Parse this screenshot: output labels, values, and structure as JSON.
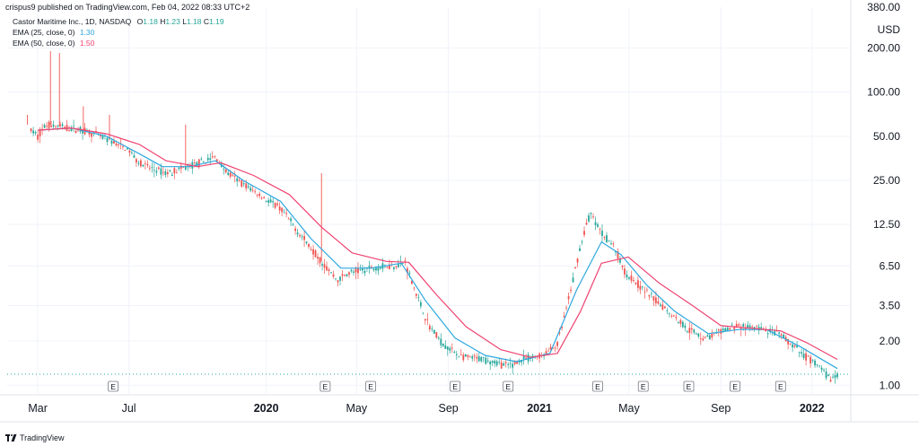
{
  "header": {
    "published": "crispus9 published on TradingView.com, Feb 04, 2022 08:33 UTC+2"
  },
  "legend": {
    "symbol": "Castor Maritime Inc., 1D, NASDAQ",
    "ohlc": {
      "o_label": "O",
      "o": "1.18",
      "h_label": "H",
      "h": "1.23",
      "l_label": "L",
      "l": "1.18",
      "c_label": "C",
      "c": "1.19"
    },
    "ema25_label": "EMA (25, close, 0)",
    "ema25_value": "1.30",
    "ema50_label": "EMA (50, close, 0)",
    "ema50_value": "1.50"
  },
  "footer": {
    "brand": "TradingView"
  },
  "colors": {
    "up": "#26a69a",
    "down": "#ef5350",
    "ema25": "#2ea8e0",
    "ema50": "#ef4270",
    "grid": "#f0f3fa",
    "axis_text": "#131722",
    "last_price": "#26a69a"
  },
  "chart_data": {
    "type": "line",
    "y_scale": "log",
    "y_unit": "USD",
    "y_ticks": [
      1.0,
      2.0,
      3.5,
      6.5,
      12.5,
      25.0,
      50.0,
      100.0,
      200.0,
      380.0
    ],
    "y_tick_labels": [
      "1.00",
      "2.00",
      "3.50",
      "6.50",
      "12.50",
      "25.00",
      "50.00",
      "100.00",
      "200.00",
      "380.00"
    ],
    "x_tick_labels": [
      {
        "label": "Mar",
        "date": "2019-03-01",
        "bold": false
      },
      {
        "label": "Jul",
        "date": "2019-07-01",
        "bold": false
      },
      {
        "label": "2020",
        "date": "2020-01-01",
        "bold": true
      },
      {
        "label": "May",
        "date": "2020-05-01",
        "bold": false
      },
      {
        "label": "Sep",
        "date": "2020-09-01",
        "bold": false
      },
      {
        "label": "2021",
        "date": "2021-01-01",
        "bold": true
      },
      {
        "label": "May",
        "date": "2021-05-01",
        "bold": false
      },
      {
        "label": "Sep",
        "date": "2021-09-01",
        "bold": false
      },
      {
        "label": "2022",
        "date": "2022-01-01",
        "bold": true
      }
    ],
    "earnings_markers": [
      {
        "label": "E",
        "date": "2019-06-10"
      },
      {
        "label": "E",
        "date": "2020-03-20"
      },
      {
        "label": "E",
        "date": "2020-05-20"
      },
      {
        "label": "E",
        "date": "2020-09-10"
      },
      {
        "label": "E",
        "date": "2020-11-20"
      },
      {
        "label": "E",
        "date": "2021-03-20"
      },
      {
        "label": "E",
        "date": "2021-05-20"
      },
      {
        "label": "E",
        "date": "2021-07-20"
      },
      {
        "label": "E",
        "date": "2021-09-20"
      },
      {
        "label": "E",
        "date": "2021-11-20"
      }
    ],
    "price": [
      {
        "date": "2019-02-20",
        "value": 55
      },
      {
        "date": "2019-03-01",
        "value": 50
      },
      {
        "date": "2019-03-10",
        "value": 58
      },
      {
        "date": "2019-03-15",
        "value": 60
      },
      {
        "date": "2019-04-01",
        "value": 58
      },
      {
        "date": "2019-05-01",
        "value": 55
      },
      {
        "date": "2019-06-01",
        "value": 48
      },
      {
        "date": "2019-07-01",
        "value": 40
      },
      {
        "date": "2019-07-15",
        "value": 33
      },
      {
        "date": "2019-08-01",
        "value": 30
      },
      {
        "date": "2019-08-20",
        "value": 28
      },
      {
        "date": "2019-09-10",
        "value": 30
      },
      {
        "date": "2019-10-05",
        "value": 33
      },
      {
        "date": "2019-10-25",
        "value": 36
      },
      {
        "date": "2019-11-10",
        "value": 28
      },
      {
        "date": "2019-12-10",
        "value": 22
      },
      {
        "date": "2020-01-20",
        "value": 16
      },
      {
        "date": "2020-02-20",
        "value": 10
      },
      {
        "date": "2020-03-20",
        "value": 6.5
      },
      {
        "date": "2020-04-05",
        "value": 5.2
      },
      {
        "date": "2020-04-20",
        "value": 5.8
      },
      {
        "date": "2020-05-20",
        "value": 6.3
      },
      {
        "date": "2020-06-20",
        "value": 6.6
      },
      {
        "date": "2020-07-05",
        "value": 6.9
      },
      {
        "date": "2020-07-20",
        "value": 4.2
      },
      {
        "date": "2020-08-05",
        "value": 2.6
      },
      {
        "date": "2020-08-25",
        "value": 1.9
      },
      {
        "date": "2020-09-20",
        "value": 1.55
      },
      {
        "date": "2020-10-20",
        "value": 1.5
      },
      {
        "date": "2020-11-20",
        "value": 1.35
      },
      {
        "date": "2020-12-10",
        "value": 1.5
      },
      {
        "date": "2021-01-05",
        "value": 1.6
      },
      {
        "date": "2021-01-25",
        "value": 1.9
      },
      {
        "date": "2021-02-10",
        "value": 4
      },
      {
        "date": "2021-02-25",
        "value": 9
      },
      {
        "date": "2021-03-10",
        "value": 15
      },
      {
        "date": "2021-03-25",
        "value": 11
      },
      {
        "date": "2021-04-10",
        "value": 9
      },
      {
        "date": "2021-04-25",
        "value": 6
      },
      {
        "date": "2021-05-20",
        "value": 4.5
      },
      {
        "date": "2021-06-20",
        "value": 3.3
      },
      {
        "date": "2021-07-20",
        "value": 2.4
      },
      {
        "date": "2021-08-10",
        "value": 2.1
      },
      {
        "date": "2021-09-01",
        "value": 2.3
      },
      {
        "date": "2021-09-20",
        "value": 2.55
      },
      {
        "date": "2021-10-20",
        "value": 2.45
      },
      {
        "date": "2021-11-20",
        "value": 2.2
      },
      {
        "date": "2021-12-15",
        "value": 1.7
      },
      {
        "date": "2022-01-10",
        "value": 1.35
      },
      {
        "date": "2022-01-25",
        "value": 1.1
      },
      {
        "date": "2022-02-04",
        "value": 1.19
      }
    ],
    "spikes": [
      {
        "date": "2019-03-18",
        "value": 190
      },
      {
        "date": "2019-03-30",
        "value": 185
      },
      {
        "date": "2019-05-01",
        "value": 80
      },
      {
        "date": "2019-06-05",
        "value": 70
      },
      {
        "date": "2019-09-15",
        "value": 60
      },
      {
        "date": "2020-03-15",
        "value": 28
      },
      {
        "date": "2019-02-15",
        "value": 70
      }
    ],
    "series": [
      {
        "name": "EMA (25, close, 0)",
        "values": [
          {
            "date": "2019-03-01",
            "value": 55
          },
          {
            "date": "2019-04-15",
            "value": 57
          },
          {
            "date": "2019-06-01",
            "value": 50
          },
          {
            "date": "2019-07-15",
            "value": 38
          },
          {
            "date": "2019-08-15",
            "value": 31
          },
          {
            "date": "2019-09-20",
            "value": 31
          },
          {
            "date": "2019-10-25",
            "value": 34
          },
          {
            "date": "2019-12-01",
            "value": 25
          },
          {
            "date": "2020-01-20",
            "value": 18
          },
          {
            "date": "2020-03-01",
            "value": 10
          },
          {
            "date": "2020-04-10",
            "value": 6.3
          },
          {
            "date": "2020-05-20",
            "value": 6.3
          },
          {
            "date": "2020-06-30",
            "value": 6.8
          },
          {
            "date": "2020-08-01",
            "value": 3.8
          },
          {
            "date": "2020-09-10",
            "value": 2.1
          },
          {
            "date": "2020-10-20",
            "value": 1.6
          },
          {
            "date": "2020-12-01",
            "value": 1.45
          },
          {
            "date": "2021-01-15",
            "value": 1.65
          },
          {
            "date": "2021-02-20",
            "value": 4.5
          },
          {
            "date": "2021-03-25",
            "value": 9.5
          },
          {
            "date": "2021-04-20",
            "value": 7.8
          },
          {
            "date": "2021-05-25",
            "value": 4.8
          },
          {
            "date": "2021-07-01",
            "value": 3.2
          },
          {
            "date": "2021-08-15",
            "value": 2.25
          },
          {
            "date": "2021-09-25",
            "value": 2.4
          },
          {
            "date": "2021-11-01",
            "value": 2.4
          },
          {
            "date": "2021-12-15",
            "value": 1.85
          },
          {
            "date": "2022-02-04",
            "value": 1.3
          }
        ]
      },
      {
        "name": "EMA (50, close, 0)",
        "values": [
          {
            "date": "2019-03-01",
            "value": 55
          },
          {
            "date": "2019-04-15",
            "value": 57
          },
          {
            "date": "2019-06-01",
            "value": 52
          },
          {
            "date": "2019-07-15",
            "value": 44
          },
          {
            "date": "2019-08-20",
            "value": 34
          },
          {
            "date": "2019-10-01",
            "value": 31
          },
          {
            "date": "2019-11-01",
            "value": 33
          },
          {
            "date": "2019-12-15",
            "value": 27
          },
          {
            "date": "2020-02-01",
            "value": 20
          },
          {
            "date": "2020-03-15",
            "value": 12
          },
          {
            "date": "2020-04-25",
            "value": 8
          },
          {
            "date": "2020-06-10",
            "value": 7
          },
          {
            "date": "2020-07-10",
            "value": 6.9
          },
          {
            "date": "2020-08-15",
            "value": 4.2
          },
          {
            "date": "2020-09-25",
            "value": 2.5
          },
          {
            "date": "2020-11-10",
            "value": 1.75
          },
          {
            "date": "2020-12-20",
            "value": 1.55
          },
          {
            "date": "2021-01-25",
            "value": 1.65
          },
          {
            "date": "2021-02-25",
            "value": 3.2
          },
          {
            "date": "2021-03-25",
            "value": 6.8
          },
          {
            "date": "2021-04-30",
            "value": 7.5
          },
          {
            "date": "2021-06-10",
            "value": 5
          },
          {
            "date": "2021-07-25",
            "value": 3.5
          },
          {
            "date": "2021-09-01",
            "value": 2.55
          },
          {
            "date": "2021-10-10",
            "value": 2.45
          },
          {
            "date": "2021-11-20",
            "value": 2.35
          },
          {
            "date": "2021-12-25",
            "value": 1.95
          },
          {
            "date": "2022-02-04",
            "value": 1.5
          }
        ]
      }
    ],
    "last_price": 1.19,
    "grid": true,
    "legend_position": "top-left"
  }
}
